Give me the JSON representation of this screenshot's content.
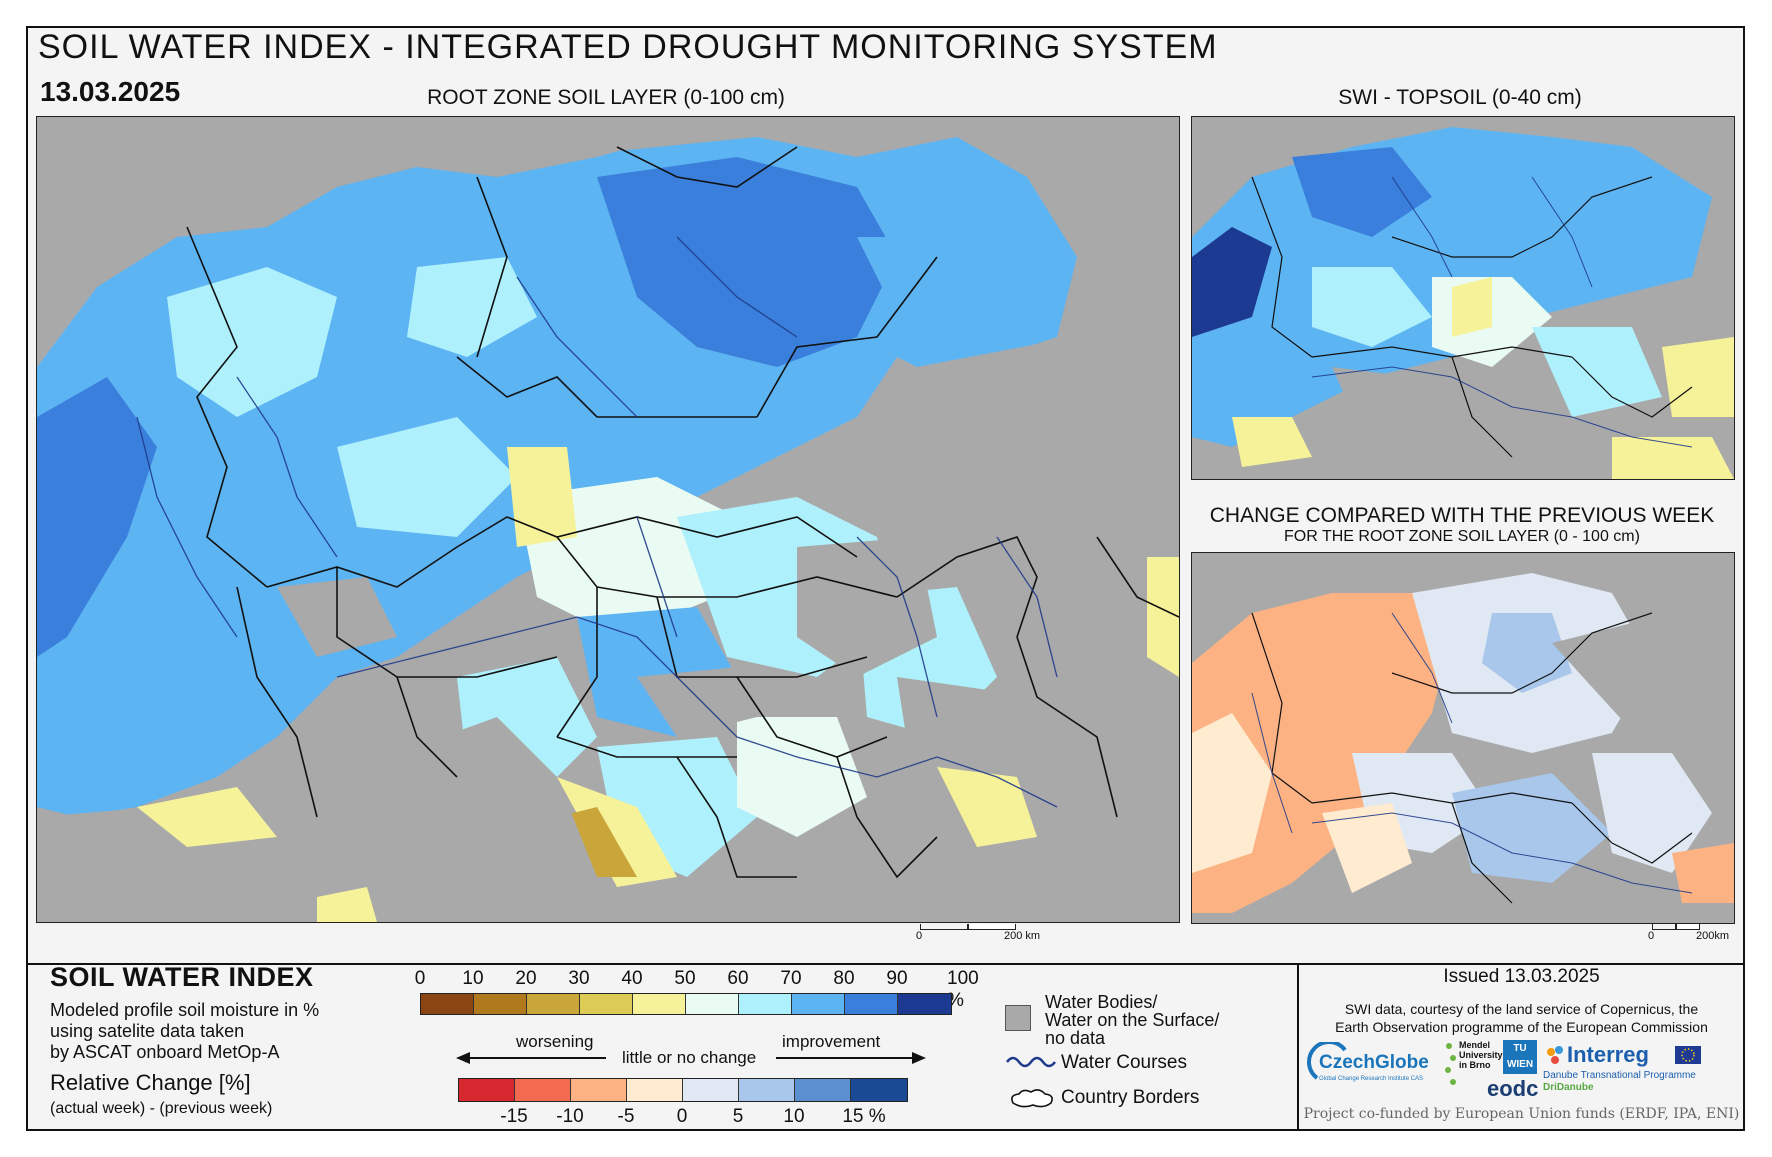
{
  "header": {
    "title": "SOIL WATER INDEX - INTEGRATED DROUGHT MONITORING SYSTEM",
    "date": "13.03.2025"
  },
  "maps": {
    "main_title": "ROOT ZONE SOIL LAYER (0-100 cm)",
    "topsoil_title": "SWI - TOPSOIL (0-40 cm)",
    "change_title": "CHANGE COMPARED WITH THE PREVIOUS WEEK",
    "change_subtitle": "FOR THE ROOT ZONE SOIL LAYER (0 - 100 cm)",
    "scale_main_zero": "0",
    "scale_main_end": "200 km",
    "scale_small_zero": "0",
    "scale_small_end": "200km"
  },
  "legend": {
    "swi_title": "SOIL WATER INDEX",
    "swi_desc_1": "Modeled profile soil moisture in %",
    "swi_desc_2": "using satelite data taken",
    "swi_desc_3": "by ASCAT onboard MetOp-A",
    "swi_ticks": [
      "0",
      "10",
      "20",
      "30",
      "40",
      "50",
      "60",
      "70",
      "80",
      "90",
      "100 %"
    ],
    "swi_colors": [
      "#8b4513",
      "#b07a1c",
      "#c9a53a",
      "#dccb55",
      "#f6f29a",
      "#e9fbf2",
      "#aef0fb",
      "#5db4f3",
      "#3a7fdb",
      "#1c3a91"
    ],
    "rc_title": "Relative Change [%]",
    "rc_sub": "(actual week) - (previous week)",
    "worsening": "worsening",
    "little_change": "little or no change",
    "improvement": "improvement",
    "rc_ticks": [
      "-15",
      "-10",
      "-5",
      "0",
      "5",
      "10",
      "15 %"
    ],
    "rc_colors": [
      "#d7282f",
      "#f26a4f",
      "#fcb282",
      "#feebd0",
      "#dfe8f3",
      "#a8c7ea",
      "#5a8fd0",
      "#1b4a94"
    ],
    "water_bodies": "Water Bodies/",
    "water_surface": "Water on the Surface/",
    "no_data": "no data",
    "water_courses": "Water Courses",
    "country_borders": "Country Borders"
  },
  "credits": {
    "issued": "Issued 13.03.2025",
    "line1": "SWI data, courtesy of the land service of Copernicus, the",
    "line2": "Earth Observation programme of the European Commission",
    "cofund": "Project co-funded by European Union funds (ERDF, IPA, ENI)",
    "logo_czechglobe": "CzechGlobe",
    "logo_czechglobe_sub": "Global Change Research Institute CAS",
    "logo_mendel": "Mendel University in Brno",
    "logo_tu": "TU WIEN",
    "logo_eodc": "eodc",
    "logo_interreg": "Interreg",
    "logo_interreg_sub": "Danube Transnational Programme",
    "logo_dridanube": "DriDanube"
  },
  "colors": {
    "no_data_gray": "#a9a9a9",
    "water_course_blue": "#1f3a8a"
  }
}
